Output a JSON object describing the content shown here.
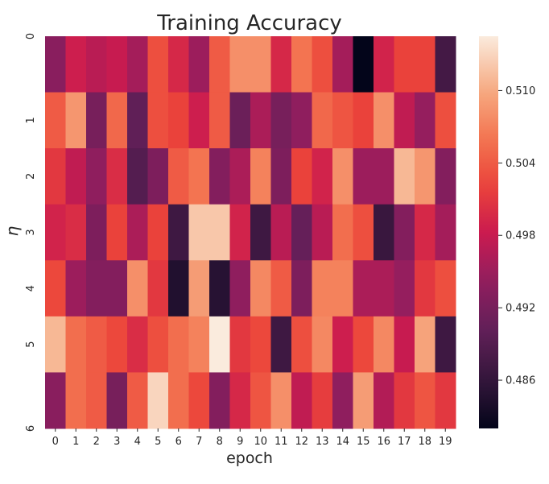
{
  "chart_data": {
    "type": "heatmap",
    "title": "Training Accuracy",
    "xlabel": "epoch",
    "ylabel": "η",
    "x_categories": [
      "0",
      "1",
      "2",
      "3",
      "4",
      "5",
      "6",
      "7",
      "8",
      "9",
      "10",
      "11",
      "12",
      "13",
      "14",
      "15",
      "16",
      "17",
      "18",
      "19"
    ],
    "y_categories": [
      "0",
      "1",
      "2",
      "3",
      "4",
      "5",
      "6"
    ],
    "colorbar": {
      "min": 0.482,
      "max": 0.5145,
      "ticks": [
        0.486,
        0.492,
        0.498,
        0.504,
        0.51
      ],
      "tick_labels": [
        "0.486",
        "0.492",
        "0.498",
        "0.504",
        "0.510"
      ],
      "colormap": "rocket"
    },
    "values": [
      [
        0.4935,
        0.4985,
        0.497,
        0.498,
        0.4955,
        0.503,
        0.4995,
        0.495,
        0.504,
        0.508,
        0.508,
        0.4995,
        0.506,
        0.503,
        0.4955,
        0.482,
        0.499,
        0.502,
        0.502,
        0.4875
      ],
      [
        0.504,
        0.5085,
        0.492,
        0.505,
        0.49,
        0.503,
        0.502,
        0.4985,
        0.504,
        0.491,
        0.496,
        0.492,
        0.494,
        0.505,
        0.5035,
        0.502,
        0.508,
        0.4975,
        0.4945,
        0.503
      ],
      [
        0.501,
        0.4975,
        0.494,
        0.5,
        0.489,
        0.4925,
        0.504,
        0.506,
        0.493,
        0.496,
        0.507,
        0.4925,
        0.502,
        0.499,
        0.508,
        0.495,
        0.495,
        0.511,
        0.5085,
        0.493
      ],
      [
        0.499,
        0.5,
        0.4925,
        0.502,
        0.496,
        0.502,
        0.487,
        0.512,
        0.512,
        0.499,
        0.487,
        0.497,
        0.4905,
        0.497,
        0.5055,
        0.503,
        0.4865,
        0.493,
        0.4995,
        0.4955
      ],
      [
        0.5025,
        0.495,
        0.493,
        0.493,
        0.508,
        0.501,
        0.4845,
        0.509,
        0.485,
        0.494,
        0.5075,
        0.504,
        0.4925,
        0.507,
        0.507,
        0.496,
        0.496,
        0.4945,
        0.501,
        0.503
      ],
      [
        0.511,
        0.5055,
        0.504,
        0.5025,
        0.5,
        0.503,
        0.5055,
        0.507,
        0.5145,
        0.501,
        0.5025,
        0.487,
        0.503,
        0.5075,
        0.4985,
        0.5025,
        0.5075,
        0.498,
        0.5095,
        0.487
      ],
      [
        0.4935,
        0.5055,
        0.504,
        0.492,
        0.504,
        0.513,
        0.5055,
        0.5025,
        0.493,
        0.4995,
        0.5035,
        0.508,
        0.4975,
        0.5015,
        0.494,
        0.509,
        0.4965,
        0.501,
        0.5035,
        0.501
      ]
    ]
  }
}
